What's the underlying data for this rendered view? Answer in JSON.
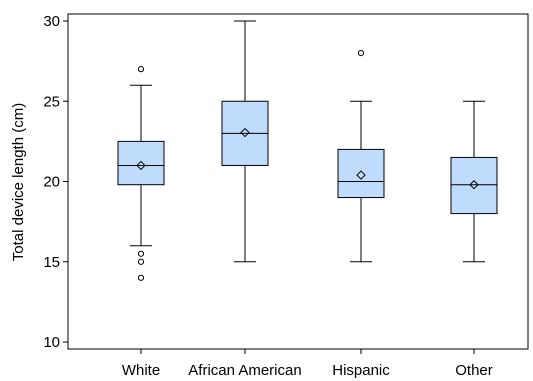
{
  "chart_data": {
    "type": "box",
    "title": "",
    "xlabel": "",
    "ylabel": "Total device length (cm)",
    "ylim": [
      10,
      30
    ],
    "yticks": [
      10,
      15,
      20,
      25,
      30
    ],
    "grid": false,
    "box_color": "#bfdcfc",
    "line_color": "#000000",
    "categories": [
      "White",
      "African American",
      "Hispanic",
      "Other"
    ],
    "groups": [
      {
        "category": "White",
        "whisker_low": 16,
        "q1": 19.8,
        "median": 21,
        "q3": 22.5,
        "whisker_high": 26,
        "mean": 21,
        "outliers": [
          27,
          15.5,
          15,
          14
        ]
      },
      {
        "category": "African American",
        "whisker_low": 15,
        "q1": 21,
        "median": 23,
        "q3": 25,
        "whisker_high": 30,
        "mean": 23.05,
        "outliers": []
      },
      {
        "category": "Hispanic",
        "whisker_low": 15,
        "q1": 19,
        "median": 20,
        "q3": 22,
        "whisker_high": 25,
        "mean": 20.4,
        "outliers": [
          28
        ]
      },
      {
        "category": "Other",
        "whisker_low": 15,
        "q1": 18,
        "median": 19.8,
        "q3": 21.5,
        "whisker_high": 25,
        "mean": 19.8,
        "outliers": []
      }
    ]
  }
}
